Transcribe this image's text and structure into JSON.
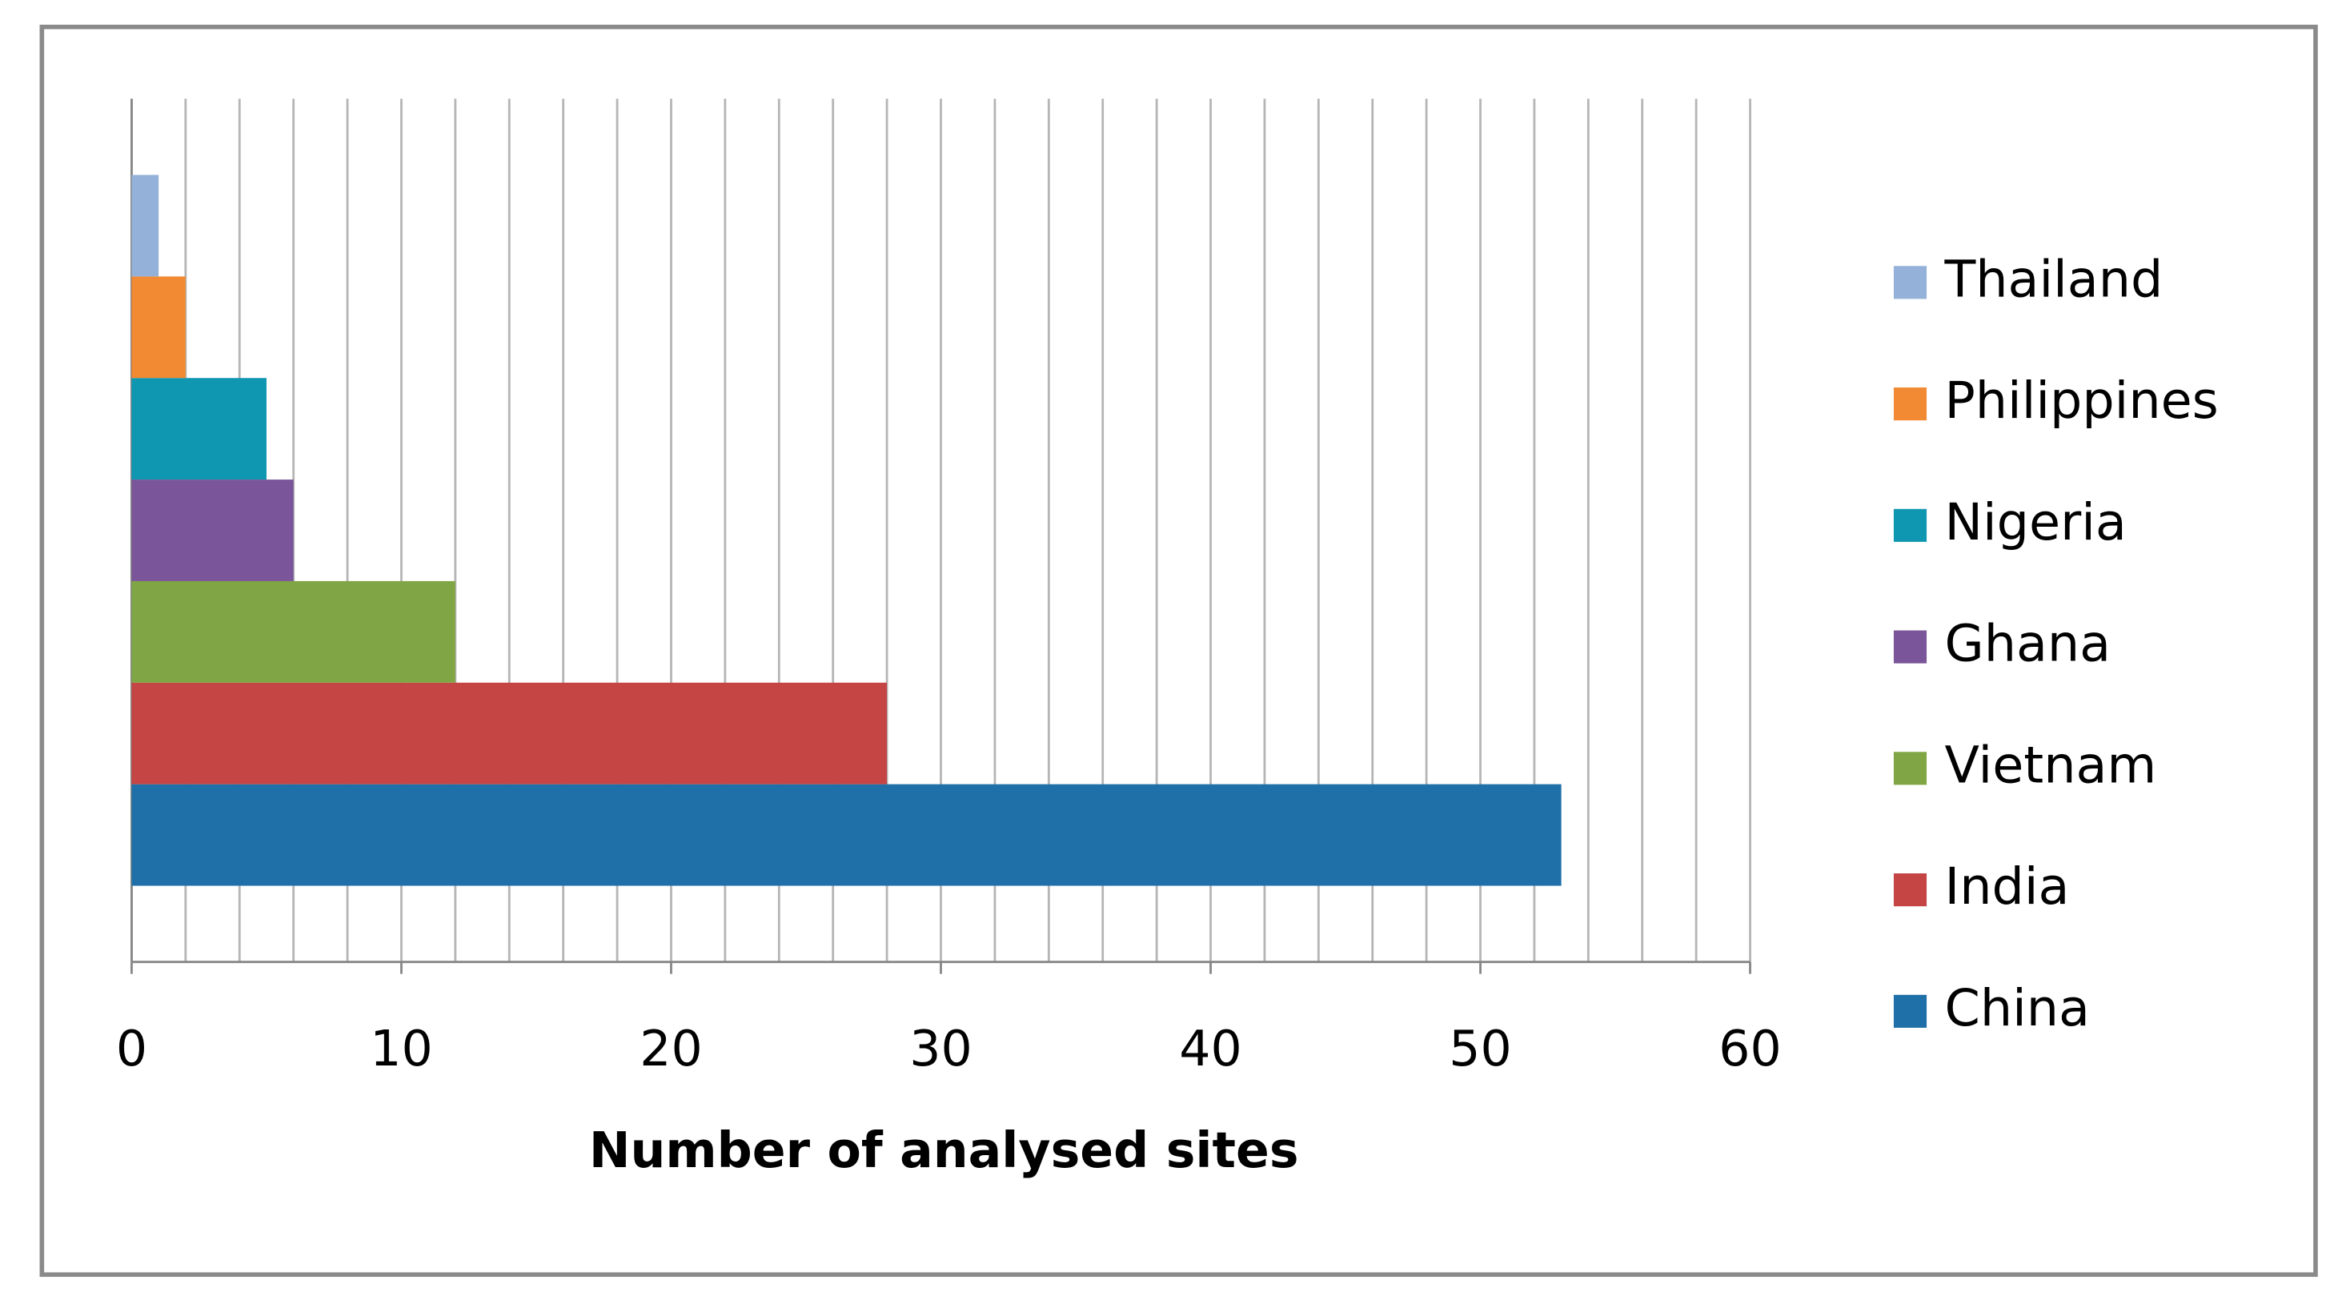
{
  "chart_data": {
    "type": "bar",
    "orientation": "horizontal",
    "x_label": "Number of analysed sites",
    "series": [
      {
        "name": "China",
        "color": "#1f6fa8",
        "values": [
          53
        ]
      },
      {
        "name": "India",
        "color": "#c44544",
        "values": [
          28
        ]
      },
      {
        "name": "Vietnam",
        "color": "#7fa544",
        "values": [
          12
        ]
      },
      {
        "name": "Ghana",
        "color": "#7a5599",
        "values": [
          6
        ]
      },
      {
        "name": "Nigeria",
        "color": "#0f97b1",
        "values": [
          5
        ]
      },
      {
        "name": "Philippines",
        "color": "#f18a33",
        "values": [
          2
        ]
      },
      {
        "name": "Thailand",
        "color": "#94b2d9",
        "values": [
          1
        ]
      }
    ],
    "xlim": [
      0,
      60
    ],
    "xticks": [
      0,
      10,
      20,
      30,
      40,
      50,
      60
    ],
    "xgrid": [
      0,
      2,
      4,
      6,
      8,
      10,
      12,
      14,
      16,
      18,
      20,
      22,
      24,
      26,
      28,
      30,
      32,
      34,
      36,
      38,
      40,
      42,
      44,
      46,
      48,
      50,
      52,
      54,
      56,
      58,
      60
    ],
    "grid": true,
    "legend": "right"
  }
}
